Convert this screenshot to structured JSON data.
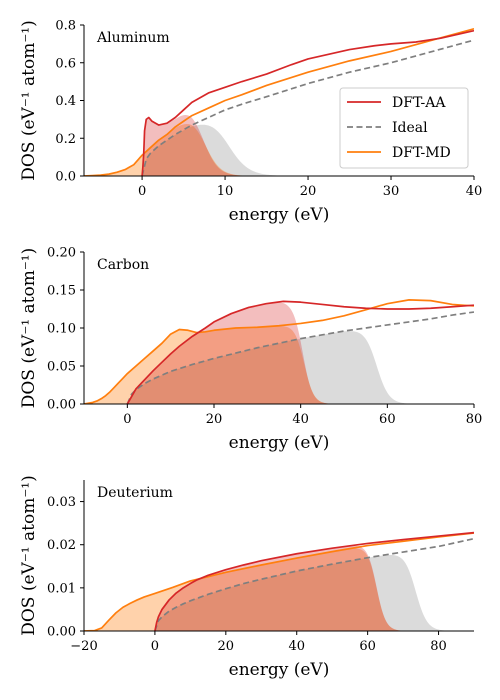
{
  "colors": {
    "dft_aa": "#d62728",
    "ideal": "#7f7f7f",
    "dft_md": "#ff7f0e",
    "aa_fill": "#e8a0a4",
    "md_fill": "#ffcc99",
    "overlap_fill": "#dc9a76",
    "ideal_fill": "#d9d9d9"
  },
  "legend": {
    "items": [
      {
        "label": "DFT-AA",
        "color": "#d62728",
        "style": "solid"
      },
      {
        "label": "Ideal",
        "color": "#7f7f7f",
        "style": "dashed"
      },
      {
        "label": "DFT-MD",
        "color": "#ff7f0e",
        "style": "solid"
      }
    ]
  },
  "chart_data": [
    {
      "type": "area",
      "annotation": "Aluminum",
      "xlabel": "energy (eV)",
      "ylabel": "DOS (eV⁻¹ atom⁻¹)",
      "xlim": [
        -7,
        40
      ],
      "ylim": [
        0,
        0.8
      ],
      "xticks": [
        0,
        10,
        20,
        30,
        40
      ],
      "xtick_labels": [
        "0",
        "10",
        "20",
        "30",
        "40"
      ],
      "yticks": [
        0,
        0.2,
        0.4,
        0.6,
        0.8
      ],
      "ytick_labels": [
        "0.0",
        "0.2",
        "0.4",
        "0.6",
        "0.8"
      ],
      "legend_position": "lower right",
      "series": [
        {
          "name": "DFT-AA",
          "points": [
            [
              0,
              0
            ],
            [
              0.1,
              0.05
            ],
            [
              0.2,
              0.12
            ],
            [
              0.3,
              0.24
            ],
            [
              0.5,
              0.3
            ],
            [
              0.8,
              0.31
            ],
            [
              1.2,
              0.29
            ],
            [
              2,
              0.27
            ],
            [
              3,
              0.28
            ],
            [
              4,
              0.31
            ],
            [
              5,
              0.35
            ],
            [
              6,
              0.39
            ],
            [
              8,
              0.44
            ],
            [
              10,
              0.47
            ],
            [
              12,
              0.5
            ],
            [
              15,
              0.54
            ],
            [
              18,
              0.59
            ],
            [
              20,
              0.62
            ],
            [
              25,
              0.67
            ],
            [
              28,
              0.69
            ],
            [
              30,
              0.7
            ],
            [
              33,
              0.71
            ],
            [
              36,
              0.73
            ],
            [
              38,
              0.75
            ],
            [
              40,
              0.77
            ]
          ]
        },
        {
          "name": "Ideal",
          "points": [
            [
              0,
              0
            ],
            [
              0.5,
              0.09
            ],
            [
              1,
              0.12
            ],
            [
              2,
              0.16
            ],
            [
              3,
              0.19
            ],
            [
              4,
              0.22
            ],
            [
              6,
              0.27
            ],
            [
              8,
              0.31
            ],
            [
              10,
              0.35
            ],
            [
              12,
              0.38
            ],
            [
              15,
              0.42
            ],
            [
              20,
              0.49
            ],
            [
              25,
              0.55
            ],
            [
              30,
              0.6
            ],
            [
              35,
              0.66
            ],
            [
              40,
              0.72
            ]
          ]
        },
        {
          "name": "DFT-MD",
          "points": [
            [
              -7,
              0
            ],
            [
              -6,
              0.002
            ],
            [
              -5,
              0.005
            ],
            [
              -4,
              0.01
            ],
            [
              -3,
              0.02
            ],
            [
              -2,
              0.035
            ],
            [
              -1,
              0.06
            ],
            [
              0,
              0.11
            ],
            [
              1,
              0.15
            ],
            [
              2,
              0.19
            ],
            [
              3,
              0.22
            ],
            [
              4,
              0.26
            ],
            [
              5,
              0.29
            ],
            [
              6,
              0.32
            ],
            [
              8,
              0.36
            ],
            [
              10,
              0.4
            ],
            [
              12,
              0.43
            ],
            [
              15,
              0.48
            ],
            [
              20,
              0.55
            ],
            [
              25,
              0.61
            ],
            [
              30,
              0.66
            ],
            [
              35,
              0.72
            ],
            [
              40,
              0.78
            ]
          ]
        }
      ],
      "fills": [
        {
          "series": "DFT-MD",
          "cutoff_center": 7.5,
          "cutoff_width": 0.9
        },
        {
          "series": "DFT-AA",
          "cutoff_center": 7.2,
          "cutoff_width": 0.9
        },
        {
          "series": "Ideal",
          "cutoff_center": 10.2,
          "cutoff_width": 1.2
        }
      ]
    },
    {
      "type": "area",
      "annotation": "Carbon",
      "xlabel": "energy (eV)",
      "ylabel": "DOS (eV⁻¹ atom⁻¹)",
      "xlim": [
        -10,
        80
      ],
      "ylim": [
        0,
        0.2
      ],
      "xticks": [
        0,
        20,
        40,
        60,
        80
      ],
      "xtick_labels": [
        "0",
        "20",
        "40",
        "60",
        "80"
      ],
      "yticks": [
        0,
        0.05,
        0.1,
        0.15,
        0.2
      ],
      "ytick_labels": [
        "0.00",
        "0.05",
        "0.10",
        "0.15",
        "0.20"
      ],
      "series": [
        {
          "name": "DFT-AA",
          "points": [
            [
              0,
              0
            ],
            [
              0.5,
              0.005
            ],
            [
              1,
              0.01
            ],
            [
              2,
              0.02
            ],
            [
              4,
              0.032
            ],
            [
              6,
              0.044
            ],
            [
              8,
              0.055
            ],
            [
              10,
              0.066
            ],
            [
              12,
              0.076
            ],
            [
              15,
              0.089
            ],
            [
              18,
              0.1
            ],
            [
              20,
              0.108
            ],
            [
              24,
              0.119
            ],
            [
              28,
              0.127
            ],
            [
              32,
              0.132
            ],
            [
              36,
              0.135
            ],
            [
              40,
              0.134
            ],
            [
              45,
              0.131
            ],
            [
              50,
              0.128
            ],
            [
              55,
              0.126
            ],
            [
              60,
              0.125
            ],
            [
              65,
              0.125
            ],
            [
              70,
              0.126
            ],
            [
              75,
              0.128
            ],
            [
              80,
              0.13
            ]
          ]
        },
        {
          "name": "Ideal",
          "points": [
            [
              0,
              0
            ],
            [
              1,
              0.013
            ],
            [
              2,
              0.019
            ],
            [
              4,
              0.027
            ],
            [
              6,
              0.033
            ],
            [
              8,
              0.038
            ],
            [
              10,
              0.043
            ],
            [
              15,
              0.052
            ],
            [
              20,
              0.06
            ],
            [
              25,
              0.067
            ],
            [
              30,
              0.074
            ],
            [
              35,
              0.08
            ],
            [
              40,
              0.086
            ],
            [
              45,
              0.091
            ],
            [
              50,
              0.096
            ],
            [
              55,
              0.1
            ],
            [
              60,
              0.104
            ],
            [
              65,
              0.108
            ],
            [
              70,
              0.112
            ],
            [
              75,
              0.117
            ],
            [
              80,
              0.121
            ]
          ]
        },
        {
          "name": "DFT-MD",
          "points": [
            [
              -10,
              0
            ],
            [
              -9,
              0.001
            ],
            [
              -8,
              0.002
            ],
            [
              -7,
              0.004
            ],
            [
              -6,
              0.007
            ],
            [
              -5,
              0.011
            ],
            [
              -4,
              0.016
            ],
            [
              -3,
              0.022
            ],
            [
              -2,
              0.028
            ],
            [
              -1,
              0.034
            ],
            [
              0,
              0.04
            ],
            [
              2,
              0.05
            ],
            [
              4,
              0.06
            ],
            [
              6,
              0.07
            ],
            [
              8,
              0.08
            ],
            [
              10,
              0.092
            ],
            [
              12,
              0.098
            ],
            [
              14,
              0.097
            ],
            [
              16,
              0.094
            ],
            [
              18,
              0.095
            ],
            [
              20,
              0.097
            ],
            [
              25,
              0.1
            ],
            [
              30,
              0.101
            ],
            [
              35,
              0.103
            ],
            [
              40,
              0.106
            ],
            [
              45,
              0.11
            ],
            [
              50,
              0.116
            ],
            [
              55,
              0.124
            ],
            [
              60,
              0.132
            ],
            [
              65,
              0.137
            ],
            [
              70,
              0.136
            ],
            [
              75,
              0.131
            ],
            [
              80,
              0.129
            ]
          ]
        }
      ],
      "fills": [
        {
          "series": "DFT-MD",
          "cutoff_center": 40.8,
          "cutoff_width": 1.1
        },
        {
          "series": "DFT-AA",
          "cutoff_center": 40.5,
          "cutoff_width": 1.1
        },
        {
          "series": "Ideal",
          "cutoff_center": 57.5,
          "cutoff_width": 1.4
        }
      ]
    },
    {
      "type": "area",
      "annotation": "Deuterium",
      "xlabel": "energy (eV)",
      "ylabel": "DOS (eV⁻¹ atom⁻¹)",
      "xlim": [
        -20,
        90
      ],
      "ylim": [
        0,
        0.035
      ],
      "xticks": [
        -20,
        0,
        20,
        40,
        60,
        80
      ],
      "xtick_labels": [
        "−20",
        "0",
        "20",
        "40",
        "60",
        "80"
      ],
      "yticks": [
        0,
        0.01,
        0.02,
        0.03
      ],
      "ytick_labels": [
        "0.00",
        "0.01",
        "0.02",
        "0.03"
      ],
      "series": [
        {
          "name": "DFT-AA",
          "points": [
            [
              0,
              0
            ],
            [
              0.5,
              0.002
            ],
            [
              1,
              0.0033
            ],
            [
              2,
              0.005
            ],
            [
              4,
              0.0072
            ],
            [
              6,
              0.0088
            ],
            [
              8,
              0.01
            ],
            [
              10,
              0.011
            ],
            [
              12,
              0.0119
            ],
            [
              15,
              0.0129
            ],
            [
              20,
              0.0142
            ],
            [
              25,
              0.0153
            ],
            [
              30,
              0.0163
            ],
            [
              40,
              0.0179
            ],
            [
              50,
              0.0192
            ],
            [
              60,
              0.0203
            ],
            [
              70,
              0.0212
            ],
            [
              80,
              0.022
            ],
            [
              90,
              0.0228
            ]
          ]
        },
        {
          "name": "Ideal",
          "points": [
            [
              0,
              0
            ],
            [
              1,
              0.0024
            ],
            [
              2,
              0.0033
            ],
            [
              4,
              0.0046
            ],
            [
              6,
              0.0055
            ],
            [
              8,
              0.0063
            ],
            [
              10,
              0.007
            ],
            [
              15,
              0.0085
            ],
            [
              20,
              0.0098
            ],
            [
              25,
              0.011
            ],
            [
              30,
              0.012
            ],
            [
              40,
              0.0139
            ],
            [
              50,
              0.0155
            ],
            [
              60,
              0.017
            ],
            [
              70,
              0.0183
            ],
            [
              80,
              0.0196
            ],
            [
              90,
              0.0214
            ]
          ]
        },
        {
          "name": "DFT-MD",
          "points": [
            [
              -20,
              0
            ],
            [
              -17,
              0.0001
            ],
            [
              -15,
              0.0007
            ],
            [
              -13,
              0.0025
            ],
            [
              -11,
              0.0042
            ],
            [
              -9,
              0.0055
            ],
            [
              -7,
              0.0064
            ],
            [
              -5,
              0.0072
            ],
            [
              -3,
              0.0079
            ],
            [
              0,
              0.0087
            ],
            [
              5,
              0.0101
            ],
            [
              10,
              0.0116
            ],
            [
              15,
              0.0126
            ],
            [
              20,
              0.0136
            ],
            [
              30,
              0.0153
            ],
            [
              40,
              0.0169
            ],
            [
              50,
              0.0184
            ],
            [
              60,
              0.0198
            ],
            [
              70,
              0.0208
            ],
            [
              80,
              0.0218
            ],
            [
              90,
              0.0227
            ]
          ]
        }
      ],
      "fills": [
        {
          "series": "DFT-MD",
          "cutoff_center": 62.5,
          "cutoff_width": 1.3
        },
        {
          "series": "DFT-AA",
          "cutoff_center": 62.5,
          "cutoff_width": 1.3
        },
        {
          "series": "Ideal",
          "cutoff_center": 73.5,
          "cutoff_width": 1.6
        }
      ]
    }
  ]
}
